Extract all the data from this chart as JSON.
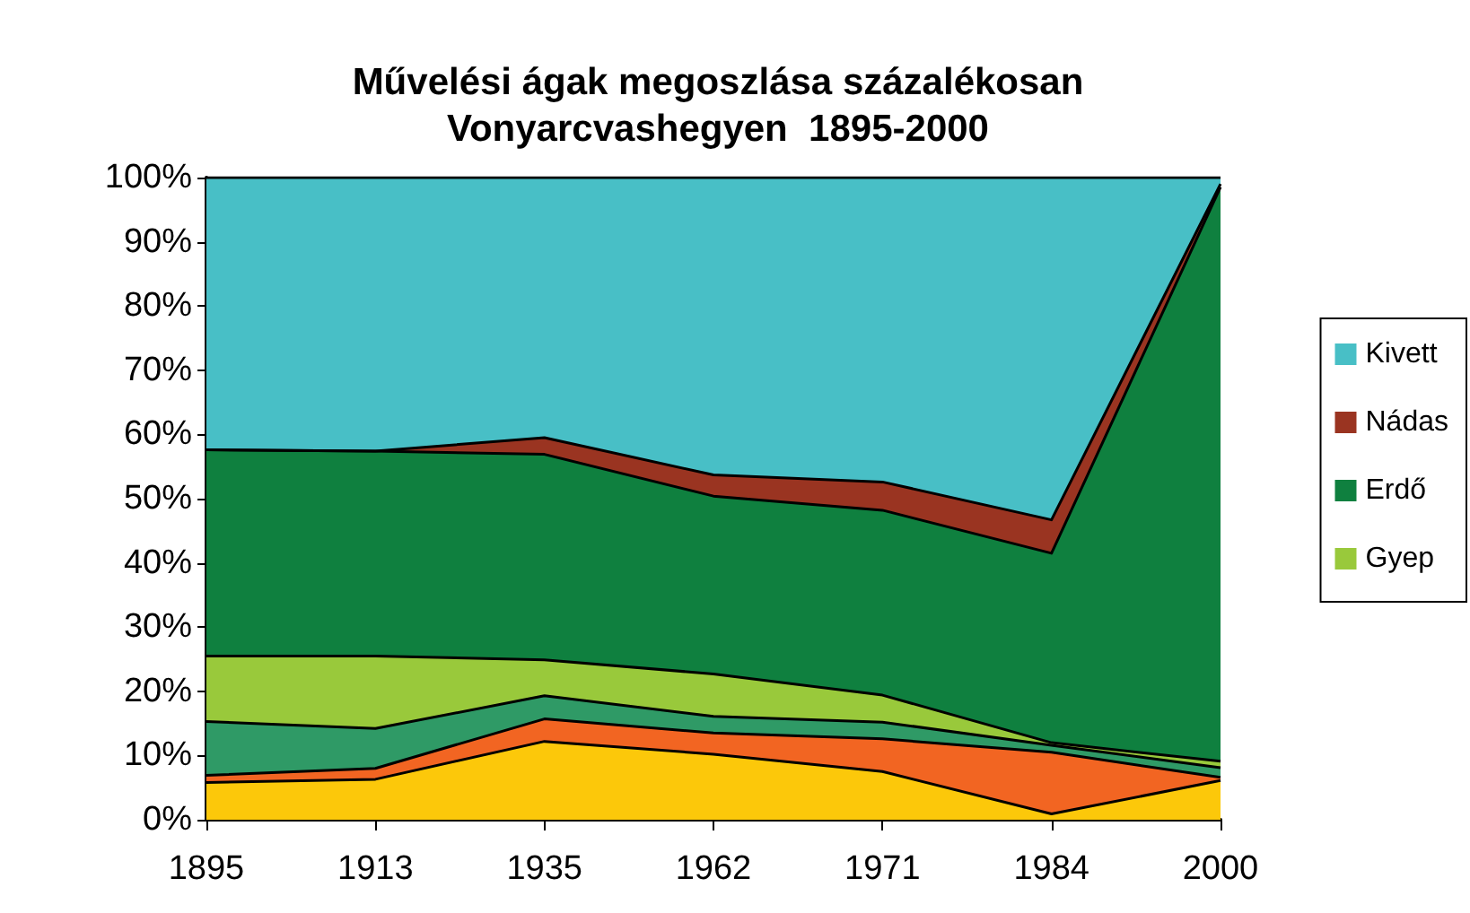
{
  "chart_data": {
    "type": "area",
    "stacked": true,
    "title": "Művelési ágak megoszlása százalékosan\nVonyarcvashegyen  1895-2000",
    "categories": [
      "1895",
      "1913",
      "1935",
      "1962",
      "1971",
      "1984",
      "2000"
    ],
    "ylim": [
      0,
      100
    ],
    "yticks": [
      {
        "value": 0,
        "label": "0%"
      },
      {
        "value": 10,
        "label": "10%"
      },
      {
        "value": 20,
        "label": "20%"
      },
      {
        "value": 30,
        "label": "30%"
      },
      {
        "value": 40,
        "label": "40%"
      },
      {
        "value": 50,
        "label": "50%"
      },
      {
        "value": 60,
        "label": "60%"
      },
      {
        "value": 70,
        "label": "70%"
      },
      {
        "value": 80,
        "label": "80%"
      },
      {
        "value": 90,
        "label": "90%"
      },
      {
        "value": 100,
        "label": "100%"
      }
    ],
    "grid": false,
    "legend": "right",
    "marker": "none",
    "series": [
      {
        "color": "#fcc80a",
        "values": [
          5.8,
          6.3,
          12.2,
          10.2,
          7.5,
          0.9,
          6.1
        ]
      },
      {
        "color": "#f26522",
        "values": [
          1.1,
          1.7,
          3.5,
          3.3,
          5.1,
          9.6,
          0.5
        ]
      },
      {
        "color": "#2f9a66",
        "values": [
          8.4,
          6.2,
          3.6,
          2.6,
          2.6,
          1.1,
          1.5
        ]
      },
      {
        "name": "Gyep",
        "color": "#99c93b",
        "values": [
          10.2,
          11.3,
          5.6,
          6.6,
          4.2,
          0.4,
          1.0
        ]
      },
      {
        "name": "Erdő",
        "color": "#0f803f",
        "values": [
          32.1,
          31.9,
          32.0,
          27.7,
          28.8,
          29.5,
          89.4
        ]
      },
      {
        "name": "Nádas",
        "color": "#9a3421",
        "values": [
          0,
          0,
          2.6,
          3.3,
          4.4,
          5.2,
          0.5
        ]
      },
      {
        "name": "Kivett",
        "color": "#48bfc6",
        "values": [
          42.4,
          42.6,
          40.5,
          46.3,
          47.4,
          53.3,
          1.0
        ]
      }
    ]
  }
}
